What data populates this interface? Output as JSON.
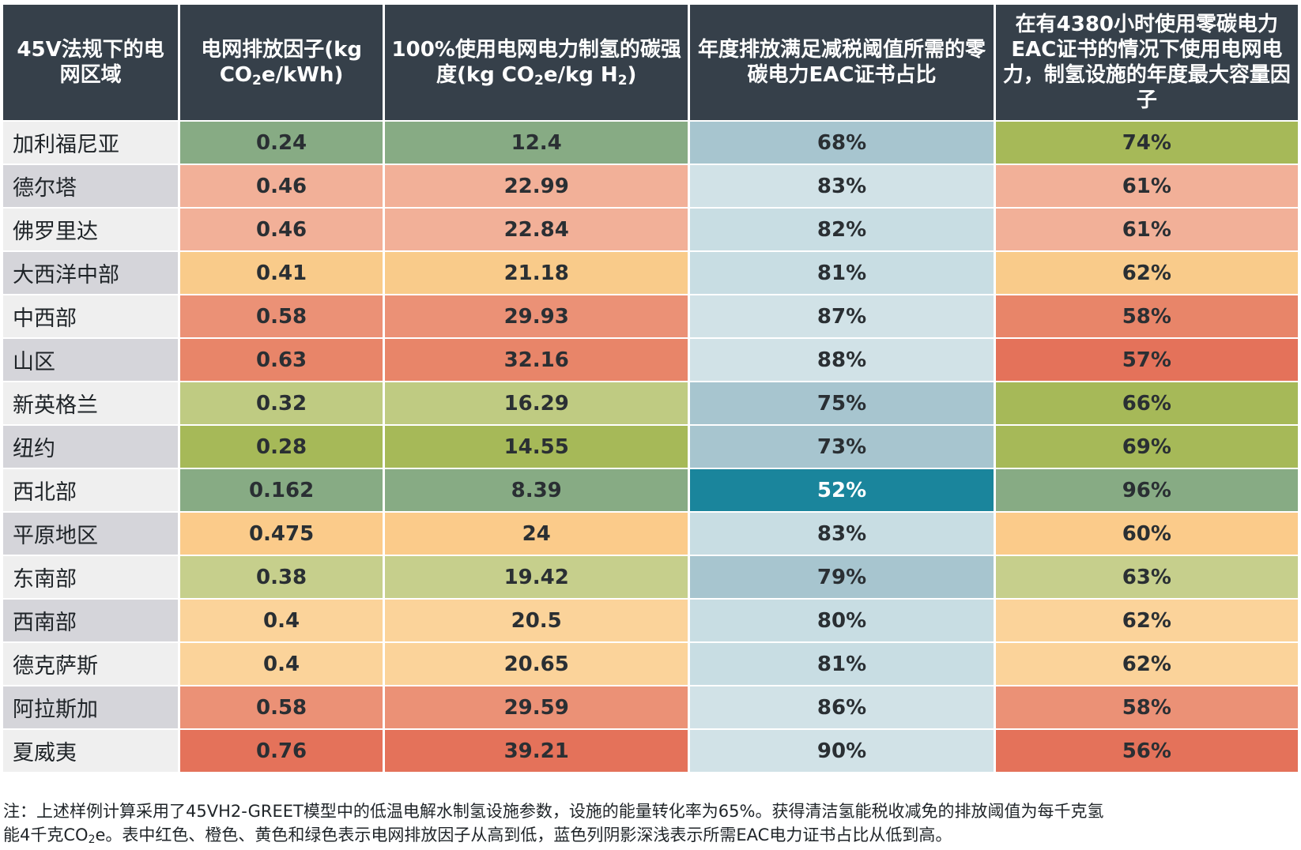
{
  "headers": {
    "c1": "45V法规下的电网区域",
    "c2_main": "电网排放因子(kg CO",
    "c2_sub": "2",
    "c2_tail": "e/kWh)",
    "c3_main": "100%使用电网电力制氢的碳强度(kg CO",
    "c3_sub": "2",
    "c3_mid": "e/kg H",
    "c3_sub2": "2",
    "c3_tail": ")",
    "c4": "年度排放满足减税阈值所需的零碳电力EAC证书占比",
    "c5": "在有4380小时使用零碳电力EAC证书的情况下使用电网电力，制氢设施的年度最大容量因子"
  },
  "rows": [
    {
      "region": "加利福尼亚",
      "factor": "0.24",
      "intensity": "12.4",
      "eac": "68%",
      "cap": "74%"
    },
    {
      "region": "德尔塔",
      "factor": "0.46",
      "intensity": "22.99",
      "eac": "83%",
      "cap": "61%"
    },
    {
      "region": "佛罗里达",
      "factor": "0.46",
      "intensity": "22.84",
      "eac": "82%",
      "cap": "61%"
    },
    {
      "region": "大西洋中部",
      "factor": "0.41",
      "intensity": "21.18",
      "eac": "81%",
      "cap": "62%"
    },
    {
      "region": "中西部",
      "factor": "0.58",
      "intensity": "29.93",
      "eac": "87%",
      "cap": "58%"
    },
    {
      "region": "山区",
      "factor": "0.63",
      "intensity": "32.16",
      "eac": "88%",
      "cap": "57%"
    },
    {
      "region": "新英格兰",
      "factor": "0.32",
      "intensity": "16.29",
      "eac": "75%",
      "cap": "66%"
    },
    {
      "region": "纽约",
      "factor": "0.28",
      "intensity": "14.55",
      "eac": "73%",
      "cap": "69%"
    },
    {
      "region": "西北部",
      "factor": "0.162",
      "intensity": "8.39",
      "eac": "52%",
      "cap": "96%"
    },
    {
      "region": "平原地区",
      "factor": "0.475",
      "intensity": "24",
      "eac": "83%",
      "cap": "60%"
    },
    {
      "region": "东南部",
      "factor": "0.38",
      "intensity": "19.42",
      "eac": "79%",
      "cap": "63%"
    },
    {
      "region": "西南部",
      "factor": "0.4",
      "intensity": "20.5",
      "eac": "80%",
      "cap": "62%"
    },
    {
      "region": "德克萨斯",
      "factor": "0.4",
      "intensity": "20.65",
      "eac": "81%",
      "cap": "62%"
    },
    {
      "region": "阿拉斯加",
      "factor": "0.58",
      "intensity": "29.59",
      "eac": "86%",
      "cap": "58%"
    },
    {
      "region": "夏威夷",
      "factor": "0.76",
      "intensity": "39.21",
      "eac": "90%",
      "cap": "56%"
    }
  ],
  "colors": {
    "header_bg": "#36404a",
    "region_odd": "#efefef",
    "region_even": "#d5d5da",
    "row_colors": [
      {
        "g": "#87ab84",
        "e": "#a7c5cf",
        "c": "#a6b958"
      },
      {
        "g": "#f2b098",
        "e": "#d1e2e7",
        "c": "#f2b098"
      },
      {
        "g": "#f2b098",
        "e": "#c8dde3",
        "c": "#f2b098"
      },
      {
        "g": "#f9cb8a",
        "e": "#c8dde3",
        "c": "#f9cb8a"
      },
      {
        "g": "#eb9176",
        "e": "#d1e2e7",
        "c": "#e88569"
      },
      {
        "g": "#e88569",
        "e": "#d1e2e7",
        "c": "#e4725a"
      },
      {
        "g": "#bfcb82",
        "e": "#a7c5cf",
        "c": "#a6b958"
      },
      {
        "g": "#a6b958",
        "e": "#a7c5cf",
        "c": "#a6b958"
      },
      {
        "g": "#87ab84",
        "e": "#1a859c",
        "c": "#87ab84",
        "eac_text": "#ffffff"
      },
      {
        "g": "#fbcb8a",
        "e": "#c8dde3",
        "c": "#fbcb8a"
      },
      {
        "g": "#c6cf8c",
        "e": "#a7c5cf",
        "c": "#c6cf8c"
      },
      {
        "g": "#fbd39a",
        "e": "#c8dde3",
        "c": "#fbd39a"
      },
      {
        "g": "#fbd39a",
        "e": "#c8dde3",
        "c": "#fbd39a"
      },
      {
        "g": "#eb9176",
        "e": "#d1e2e7",
        "c": "#eb9176"
      },
      {
        "g": "#e4725a",
        "e": "#d1e2e7",
        "c": "#e4725a"
      }
    ]
  },
  "note": {
    "line1_main": "注：上述样例计算采用了45VH2-GREET模型中的低温电解水制氢设施参数，设施的能量转化率为65%。获得清洁氢能税收减免的排放阈值为每千克氢",
    "line2_pre": "能4千克CO",
    "line2_sub": "2",
    "line2_post": "e。表中红色、橙色、黄色和绿色表示电网排放因子从高到低，蓝色列阴影深浅表示所需EAC电力证书占比从低到高。"
  }
}
